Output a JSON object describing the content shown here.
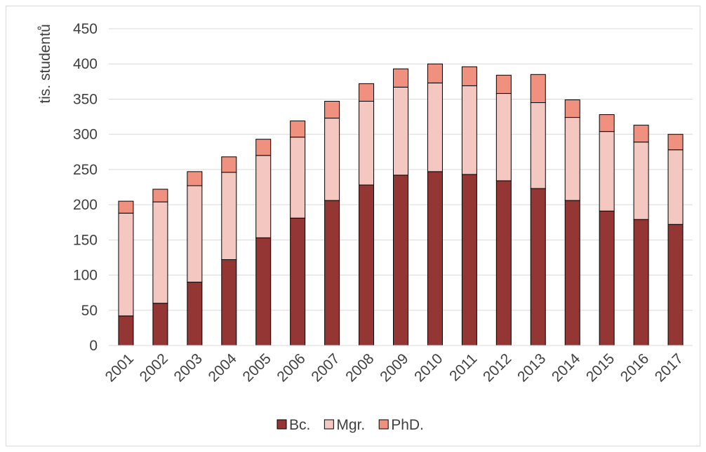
{
  "chart_data": {
    "type": "bar",
    "stacked": true,
    "categories": [
      "2001",
      "2002",
      "2003",
      "2004",
      "2005",
      "2006",
      "2007",
      "2008",
      "2009",
      "2010",
      "2011",
      "2012",
      "2013",
      "2014",
      "2015",
      "2016",
      "2017"
    ],
    "series": [
      {
        "name": "Bc.",
        "color": "#943634",
        "values": [
          42,
          60,
          90,
          122,
          153,
          181,
          206,
          228,
          242,
          247,
          243,
          234,
          223,
          206,
          191,
          179,
          172
        ]
      },
      {
        "name": "Mgr.",
        "color": "#f4c7c0",
        "values": [
          146,
          144,
          137,
          124,
          117,
          115,
          117,
          119,
          125,
          126,
          126,
          124,
          122,
          118,
          113,
          110,
          106
        ]
      },
      {
        "name": "PhD.",
        "color": "#f0907e",
        "values": [
          17,
          18,
          20,
          22,
          23,
          23,
          24,
          25,
          26,
          27,
          27,
          26,
          40,
          25,
          24,
          24,
          22
        ]
      }
    ],
    "ylabel": "tis. studentů",
    "xlabel": "",
    "ylim": [
      0,
      450
    ],
    "yticks": [
      0,
      50,
      100,
      150,
      200,
      250,
      300,
      350,
      400,
      450
    ],
    "grid": true,
    "legend_position": "bottom"
  }
}
